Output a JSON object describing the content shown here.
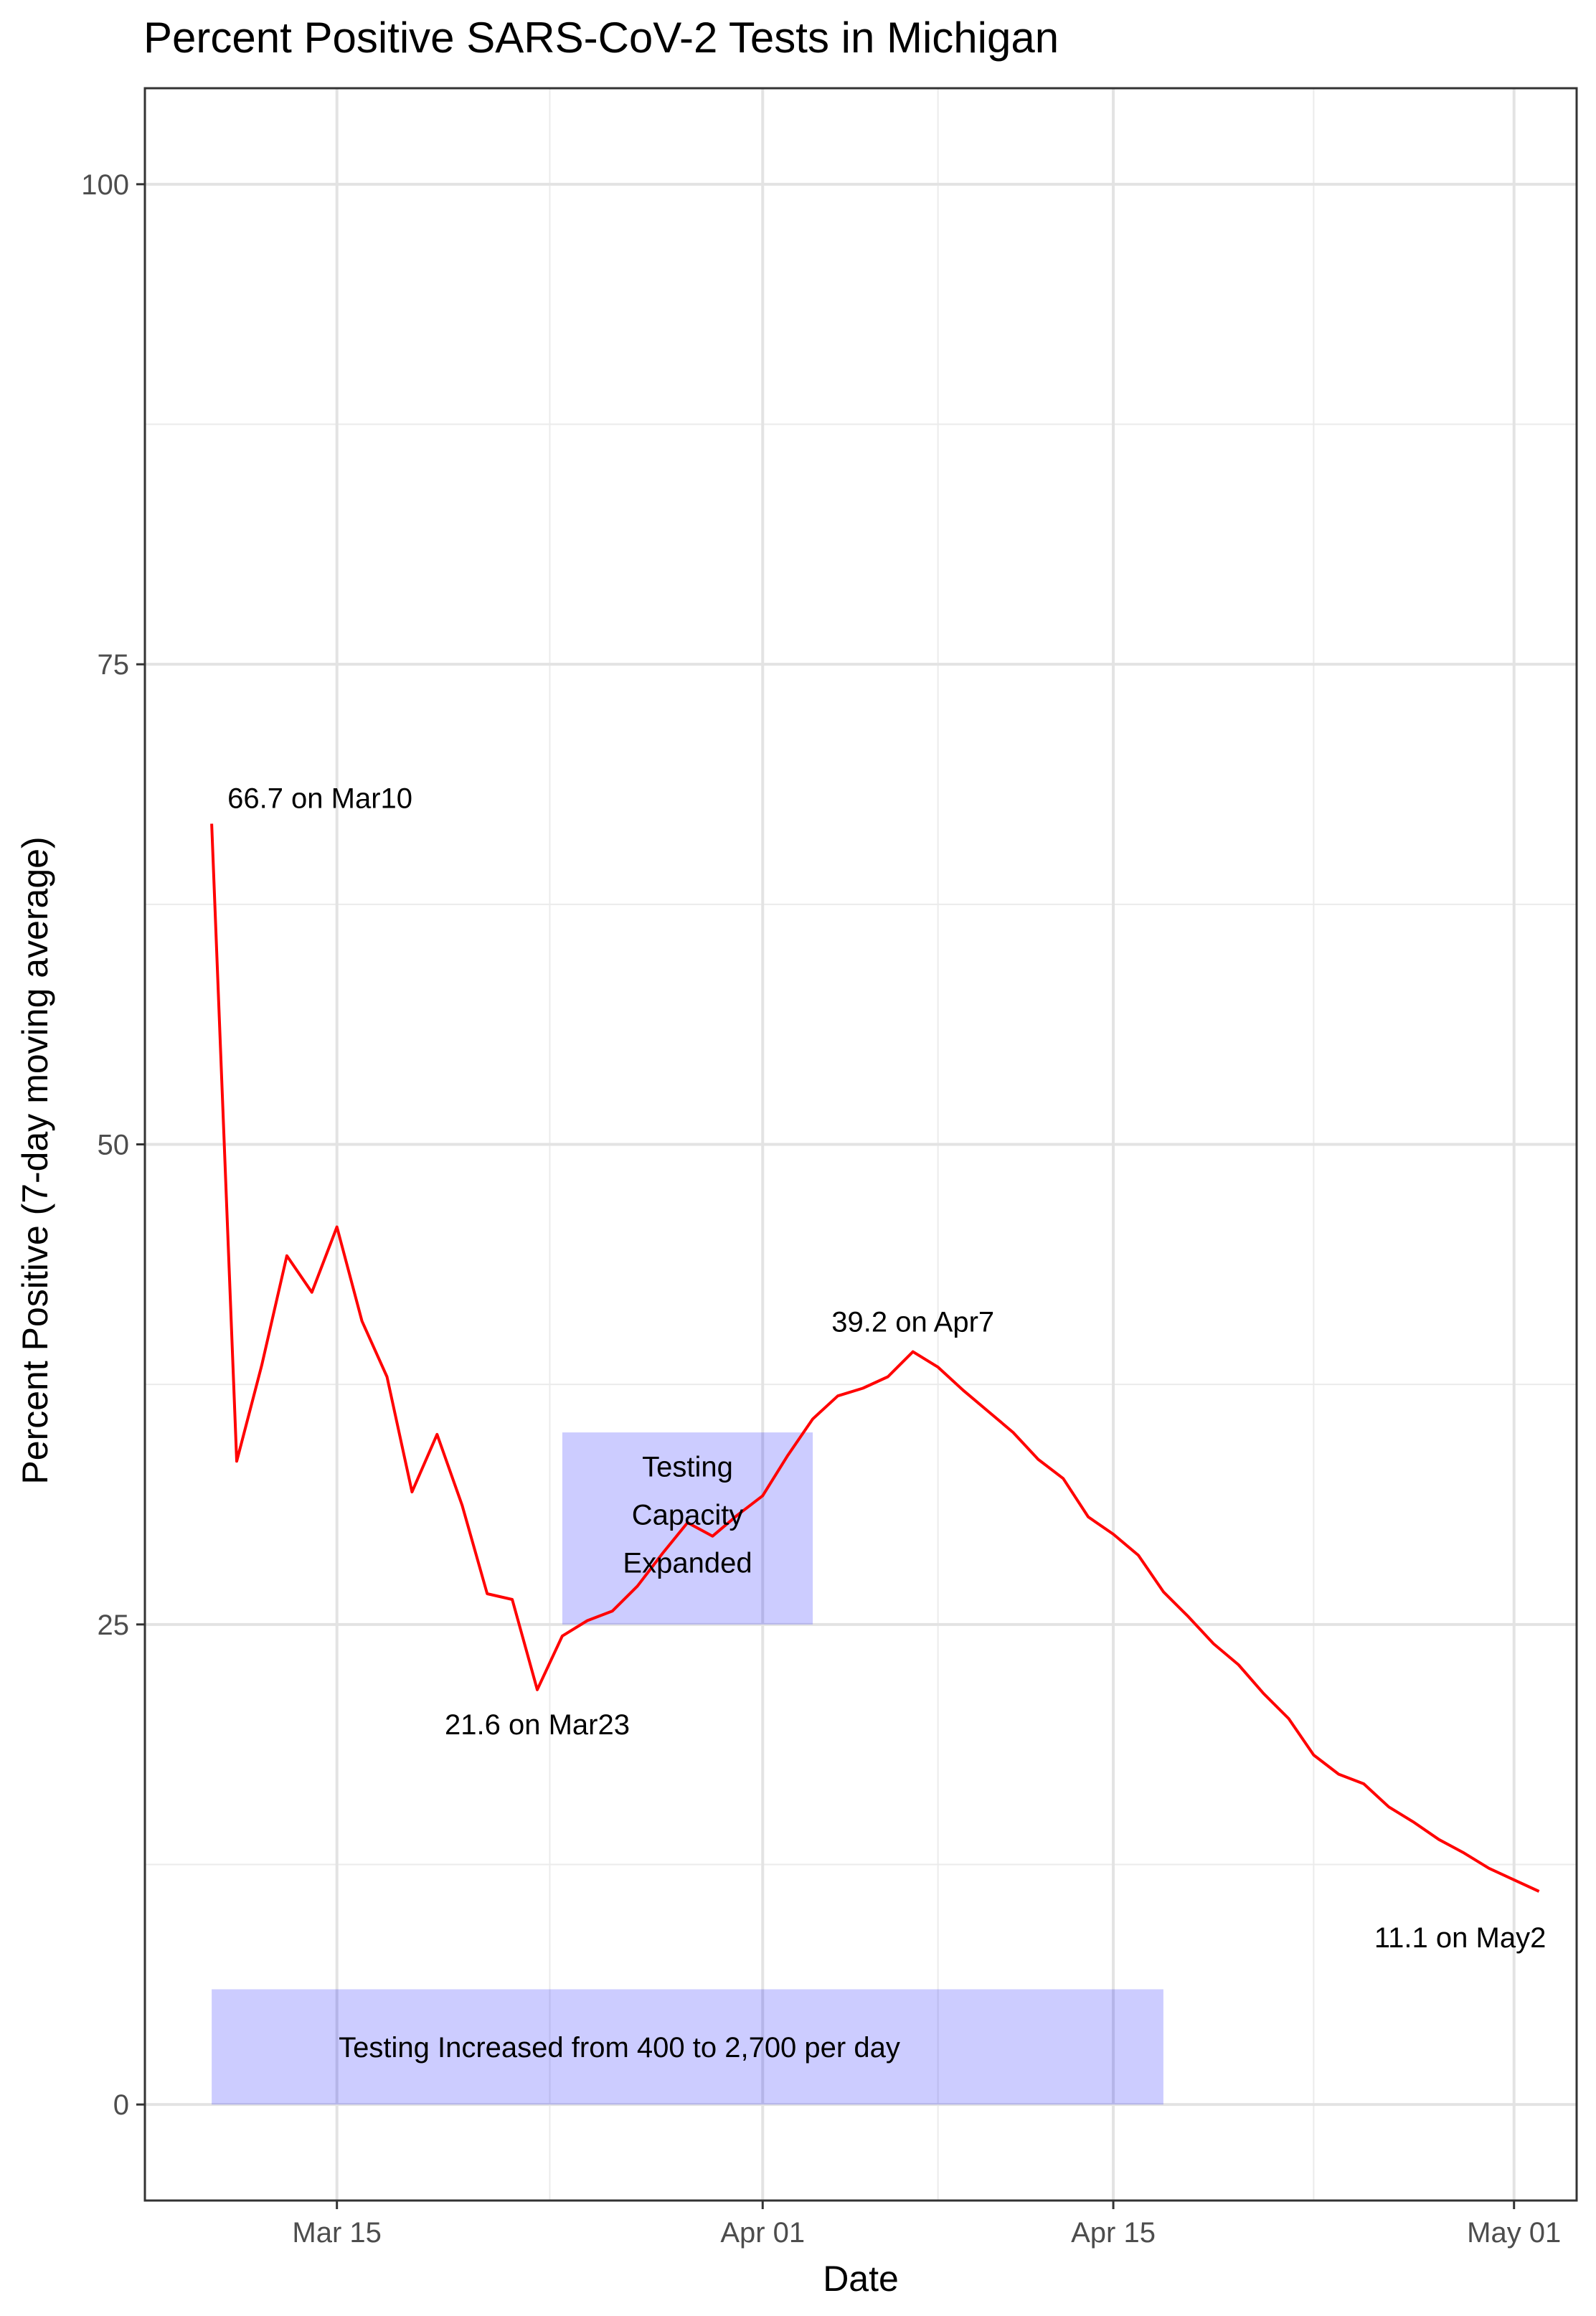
{
  "chart_data": {
    "type": "line",
    "title": "Percent Positive SARS-CoV-2 Tests in Michigan",
    "xlabel": "Date",
    "ylabel": "Percent Positive (7-day moving average)",
    "x_ticks": [
      "Mar 15",
      "Apr 01",
      "Apr 15",
      "May 01"
    ],
    "x_tick_dates": [
      "2020-03-15",
      "2020-04-01",
      "2020-04-15",
      "2020-05-01"
    ],
    "y_ticks": [
      0,
      25,
      50,
      75,
      100
    ],
    "ylim": [
      -5,
      105
    ],
    "xlim": [
      "2020-03-07 08:00",
      "2020-05-03 12:00"
    ],
    "grid": true,
    "series_color": "#FF0000",
    "highlight_color": "#0000FF",
    "series": [
      {
        "x": [
          "2020-03-10",
          "2020-03-11",
          "2020-03-12",
          "2020-03-13",
          "2020-03-14",
          "2020-03-15",
          "2020-03-16",
          "2020-03-17",
          "2020-03-18",
          "2020-03-19",
          "2020-03-20",
          "2020-03-21",
          "2020-03-22",
          "2020-03-23",
          "2020-03-24",
          "2020-03-25",
          "2020-03-26",
          "2020-03-27",
          "2020-03-28",
          "2020-03-29",
          "2020-03-30",
          "2020-03-31",
          "2020-04-01",
          "2020-04-02",
          "2020-04-03",
          "2020-04-04",
          "2020-04-05",
          "2020-04-06",
          "2020-04-07",
          "2020-04-08",
          "2020-04-09",
          "2020-04-10",
          "2020-04-11",
          "2020-04-12",
          "2020-04-13",
          "2020-04-14",
          "2020-04-15",
          "2020-04-16",
          "2020-04-17",
          "2020-04-18",
          "2020-04-19",
          "2020-04-20",
          "2020-04-21",
          "2020-04-22",
          "2020-04-23",
          "2020-04-24",
          "2020-04-25",
          "2020-04-26",
          "2020-04-27",
          "2020-04-28",
          "2020-04-29",
          "2020-04-30",
          "2020-05-01",
          "2020-05-02"
        ],
        "values": [
          66.7,
          33.5,
          38.5,
          44.2,
          42.3,
          45.7,
          40.8,
          37.9,
          31.9,
          34.9,
          31.2,
          26.6,
          26.3,
          21.6,
          24.4,
          25.2,
          25.7,
          27.0,
          28.7,
          30.3,
          29.6,
          30.7,
          31.7,
          33.8,
          35.7,
          36.9,
          37.3,
          37.9,
          39.2,
          38.4,
          37.2,
          36.1,
          35.0,
          33.6,
          32.6,
          30.6,
          29.7,
          28.6,
          26.7,
          25.4,
          24.0,
          22.9,
          21.4,
          20.1,
          18.2,
          17.2,
          16.7,
          15.5,
          14.7,
          13.8,
          13.1,
          12.3,
          11.7,
          11.1
        ]
      }
    ],
    "annotations": {
      "peak": "66.7 on Mar10",
      "trough": "21.6 on Mar23",
      "apr_peak": "39.2 on Apr7",
      "last": "11.1 on May2",
      "box_line1": "Testing",
      "box_line2": "Capacity",
      "box_line3": "Expanded",
      "range_label": "Testing Increased from 400 to 2,700 per day"
    }
  }
}
